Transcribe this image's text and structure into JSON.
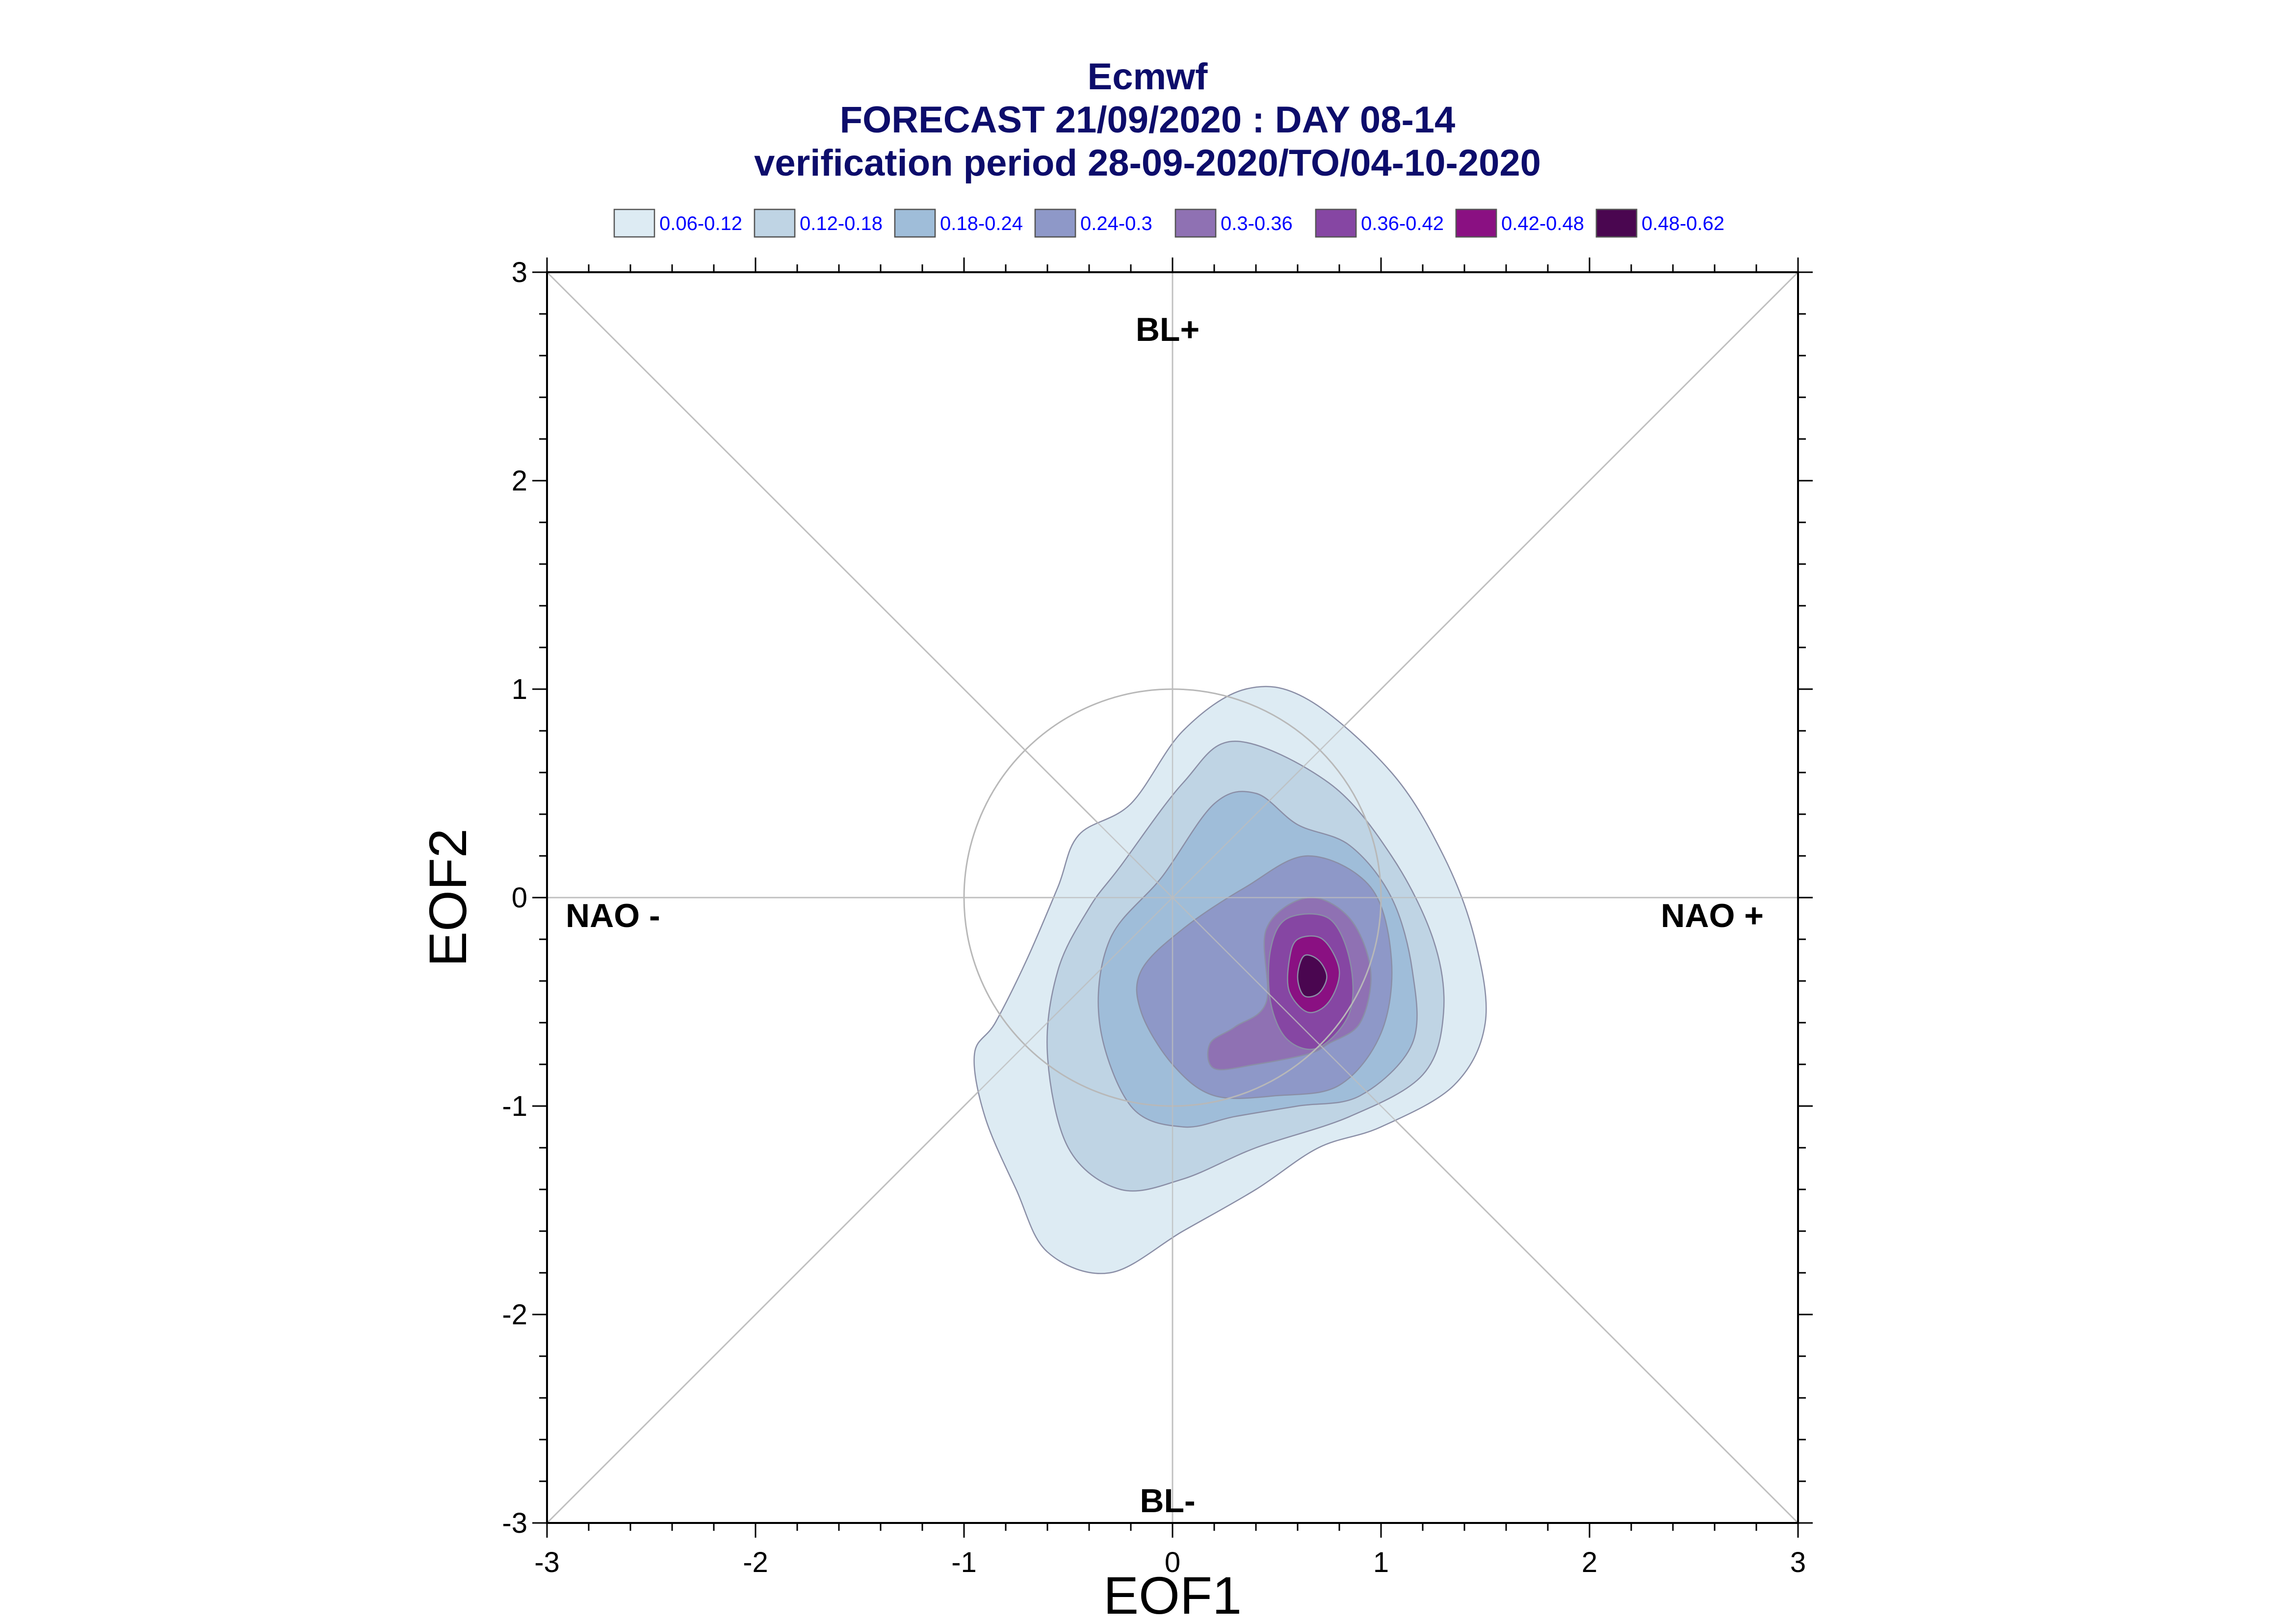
{
  "chart_data": {
    "type": "contour",
    "title": "Ecmwf",
    "subtitle_1": "FORECAST 21/09/2020 : DAY 08-14",
    "subtitle_2": "verification period 28-09-2020/TO/04-10-2020",
    "xlabel": "EOF1",
    "ylabel": "EOF2",
    "xlim": [
      -3,
      3
    ],
    "ylim": [
      -3,
      3
    ],
    "x_ticks": [
      "-3",
      "-2",
      "-1",
      "0",
      "1",
      "2",
      "3"
    ],
    "y_ticks": [
      "3",
      "2",
      "1",
      "0",
      "-1",
      "-2",
      "-3"
    ],
    "legend_placement": "top",
    "legend": [
      {
        "label": "0.06-0.12",
        "color": "#ddebf3"
      },
      {
        "label": "0.12-0.18",
        "color": "#bfd4e4"
      },
      {
        "label": "0.18-0.24",
        "color": "#9fbdd9"
      },
      {
        "label": "0.24-0.3",
        "color": "#8e98c8"
      },
      {
        "label": "0.3-0.36",
        "color": "#8f71b3"
      },
      {
        "label": "0.36-0.42",
        "color": "#8646a3"
      },
      {
        "label": "0.42-0.48",
        "color": "#8a1082"
      },
      {
        "label": "0.48-0.62",
        "color": "#4a0650"
      }
    ],
    "annotations": {
      "top": "BL+",
      "bottom": "BL-",
      "left": "NAO -",
      "right": "NAO +"
    },
    "reference_circle": {
      "center": [
        0,
        0
      ],
      "radius": 1
    },
    "grid": "axes through origin and diagonals",
    "contour_levels": [
      {
        "range": "0.06-0.12",
        "points": [
          [
            -0.2,
            0.45
          ],
          [
            0.05,
            0.8
          ],
          [
            0.35,
            1.0
          ],
          [
            0.65,
            0.95
          ],
          [
            1.05,
            0.6
          ],
          [
            1.3,
            0.2
          ],
          [
            1.45,
            -0.2
          ],
          [
            1.5,
            -0.6
          ],
          [
            1.35,
            -0.9
          ],
          [
            1.0,
            -1.1
          ],
          [
            0.7,
            -1.2
          ],
          [
            0.4,
            -1.4
          ],
          [
            0.05,
            -1.6
          ],
          [
            -0.3,
            -1.8
          ],
          [
            -0.6,
            -1.7
          ],
          [
            -0.75,
            -1.4
          ],
          [
            -0.9,
            -1.05
          ],
          [
            -0.95,
            -0.75
          ],
          [
            -0.85,
            -0.6
          ],
          [
            -0.7,
            -0.3
          ],
          [
            -0.55,
            0.05
          ],
          [
            -0.45,
            0.3
          ]
        ]
      },
      {
        "range": "0.12-0.18",
        "points": [
          [
            -0.25,
            0.15
          ],
          [
            0.05,
            0.55
          ],
          [
            0.3,
            0.75
          ],
          [
            0.75,
            0.55
          ],
          [
            1.05,
            0.2
          ],
          [
            1.25,
            -0.2
          ],
          [
            1.3,
            -0.55
          ],
          [
            1.2,
            -0.85
          ],
          [
            0.85,
            -1.05
          ],
          [
            0.4,
            -1.2
          ],
          [
            0.05,
            -1.35
          ],
          [
            -0.25,
            -1.4
          ],
          [
            -0.5,
            -1.2
          ],
          [
            -0.6,
            -0.75
          ],
          [
            -0.55,
            -0.35
          ],
          [
            -0.4,
            -0.05
          ]
        ]
      },
      {
        "range": "0.18-0.24",
        "points": [
          [
            -0.05,
            0.1
          ],
          [
            0.2,
            0.45
          ],
          [
            0.4,
            0.5
          ],
          [
            0.6,
            0.35
          ],
          [
            0.85,
            0.25
          ],
          [
            1.05,
            0.0
          ],
          [
            1.15,
            -0.35
          ],
          [
            1.15,
            -0.7
          ],
          [
            0.9,
            -0.95
          ],
          [
            0.6,
            -1.0
          ],
          [
            0.3,
            -1.05
          ],
          [
            0.05,
            -1.1
          ],
          [
            -0.2,
            -1.0
          ],
          [
            -0.35,
            -0.6
          ],
          [
            -0.3,
            -0.2
          ]
        ]
      },
      {
        "range": "0.24-0.3",
        "points": [
          [
            0.05,
            -0.15
          ],
          [
            0.35,
            0.05
          ],
          [
            0.65,
            0.2
          ],
          [
            0.95,
            0.05
          ],
          [
            1.05,
            -0.3
          ],
          [
            1.0,
            -0.65
          ],
          [
            0.8,
            -0.9
          ],
          [
            0.5,
            -0.95
          ],
          [
            0.2,
            -0.95
          ],
          [
            0.0,
            -0.8
          ],
          [
            -0.15,
            -0.55
          ],
          [
            -0.15,
            -0.35
          ]
        ]
      },
      {
        "range": "0.3-0.36",
        "points": [
          [
            0.45,
            -0.15
          ],
          [
            0.65,
            0.0
          ],
          [
            0.85,
            -0.1
          ],
          [
            0.95,
            -0.35
          ],
          [
            0.9,
            -0.6
          ],
          [
            0.75,
            -0.7
          ],
          [
            0.65,
            -0.75
          ],
          [
            0.4,
            -0.8
          ],
          [
            0.2,
            -0.82
          ],
          [
            0.18,
            -0.7
          ],
          [
            0.3,
            -0.62
          ],
          [
            0.45,
            -0.5
          ]
        ]
      },
      {
        "range": "0.36-0.42",
        "points": [
          [
            0.55,
            -0.1
          ],
          [
            0.75,
            -0.1
          ],
          [
            0.85,
            -0.3
          ],
          [
            0.85,
            -0.55
          ],
          [
            0.7,
            -0.72
          ],
          [
            0.55,
            -0.68
          ],
          [
            0.47,
            -0.5
          ],
          [
            0.47,
            -0.25
          ]
        ]
      },
      {
        "range": "0.42-0.48",
        "points": [
          [
            0.6,
            -0.2
          ],
          [
            0.72,
            -0.2
          ],
          [
            0.8,
            -0.35
          ],
          [
            0.75,
            -0.5
          ],
          [
            0.65,
            -0.55
          ],
          [
            0.56,
            -0.45
          ],
          [
            0.56,
            -0.3
          ]
        ]
      },
      {
        "range": "0.48-0.62",
        "points": [
          [
            0.63,
            -0.28
          ],
          [
            0.7,
            -0.3
          ],
          [
            0.74,
            -0.38
          ],
          [
            0.7,
            -0.46
          ],
          [
            0.63,
            -0.47
          ],
          [
            0.6,
            -0.38
          ]
        ]
      }
    ]
  }
}
